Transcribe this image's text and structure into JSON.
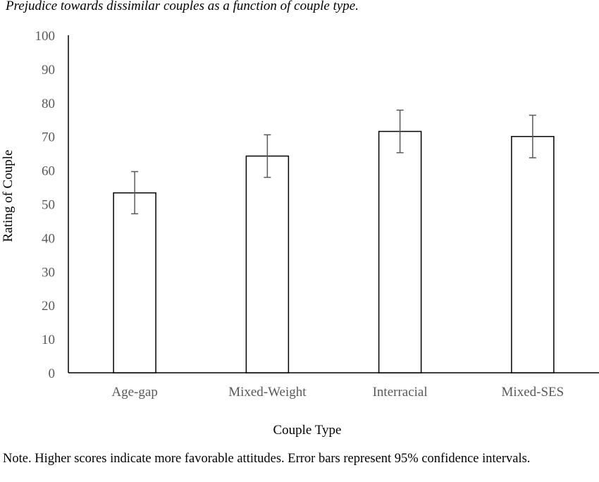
{
  "chart_data": {
    "type": "bar",
    "title": "Prejudice towards dissimilar couples as a function of couple type.",
    "xlabel": "Couple Type",
    "ylabel": "Rating of Couple",
    "categories": [
      "Age-gap",
      "Mixed-Weight",
      "Interracial",
      "Mixed-SES"
    ],
    "values": [
      53.3,
      64.2,
      71.5,
      70.0
    ],
    "error_low": [
      47.1,
      57.9,
      65.2,
      63.7
    ],
    "error_high": [
      59.6,
      70.5,
      77.8,
      76.3
    ],
    "yticks": [
      "0",
      "10",
      "20",
      "30",
      "40",
      "50",
      "60",
      "70",
      "80",
      "90",
      "100"
    ],
    "ylim": [
      0,
      100
    ],
    "grid": false,
    "bar_fill": "#ffffff",
    "bar_stroke": "#000000",
    "errorbar_color": "#595959",
    "note": "Note. Higher scores indicate more favorable attitudes. Error bars represent 95% confidence intervals."
  }
}
